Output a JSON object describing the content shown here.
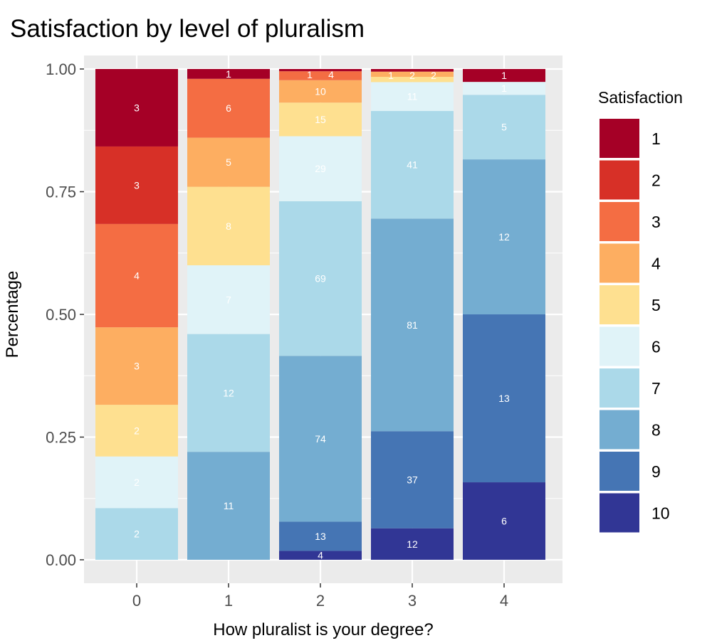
{
  "chart_data": {
    "type": "bar",
    "stacked": "percent",
    "title": "Satisfaction by level of pluralism",
    "xlabel": "How pluralist is your degree?",
    "ylabel": "Percentage",
    "ylim": [
      0,
      1
    ],
    "yticks": [
      "0.00",
      "0.25",
      "0.50",
      "0.75",
      "1.00"
    ],
    "categories": [
      "0",
      "1",
      "2",
      "3",
      "4"
    ],
    "legend": {
      "title": "Satisfaction",
      "position": "right"
    },
    "grid": true,
    "series": [
      {
        "name": "1",
        "color": "#A50026",
        "values": [
          3,
          1,
          1,
          1,
          1
        ]
      },
      {
        "name": "2",
        "color": "#D73027",
        "values": [
          3,
          0,
          0,
          0,
          0
        ]
      },
      {
        "name": "3",
        "color": "#F46D43",
        "values": [
          4,
          6,
          4,
          0,
          0
        ]
      },
      {
        "name": "4",
        "color": "#FDAE61",
        "values": [
          3,
          5,
          10,
          2,
          0
        ]
      },
      {
        "name": "5",
        "color": "#FEE090",
        "values": [
          2,
          8,
          15,
          2,
          0
        ]
      },
      {
        "name": "6",
        "color": "#E0F3F8",
        "values": [
          2,
          7,
          29,
          11,
          1
        ]
      },
      {
        "name": "7",
        "color": "#ABD9E9",
        "values": [
          2,
          12,
          69,
          41,
          5
        ]
      },
      {
        "name": "8",
        "color": "#74ADD1",
        "values": [
          0,
          11,
          74,
          81,
          12
        ]
      },
      {
        "name": "9",
        "color": "#4575B4",
        "values": [
          0,
          0,
          13,
          37,
          13
        ]
      },
      {
        "name": "10",
        "color": "#313695",
        "values": [
          0,
          0,
          4,
          12,
          6
        ]
      }
    ]
  }
}
